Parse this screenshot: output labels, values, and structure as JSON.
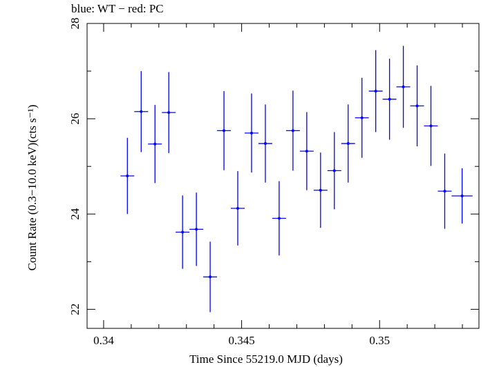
{
  "chart_data": {
    "type": "scatter",
    "title": "blue: WT − red: PC",
    "xlabel": "Time Since 55219.0 MJD (days)",
    "ylabel": "Count Rate (0.3−10.0 keV)(cts s⁻¹)",
    "xlim": [
      0.3394,
      0.3536
    ],
    "ylim": [
      21.6,
      28.0
    ],
    "x_ticks": [
      0.34,
      0.345,
      0.35
    ],
    "x_tick_labels": [
      "0.34",
      "0.345",
      "0.35"
    ],
    "y_ticks": [
      22,
      24,
      26,
      28
    ],
    "y_tick_labels": [
      "22",
      "24",
      "26",
      "28"
    ],
    "grid": false,
    "series": [
      {
        "color": "#0000ff",
        "points": [
          {
            "x": 0.34086,
            "xerr": 0.00025,
            "y": 24.8,
            "yerr": 0.8
          },
          {
            "x": 0.34136,
            "xerr": 0.00025,
            "y": 26.15,
            "yerr": 0.85
          },
          {
            "x": 0.34186,
            "xerr": 0.00025,
            "y": 25.47,
            "yerr": 0.82
          },
          {
            "x": 0.34236,
            "xerr": 0.00025,
            "y": 26.13,
            "yerr": 0.85
          },
          {
            "x": 0.34286,
            "xerr": 0.00025,
            "y": 23.62,
            "yerr": 0.77
          },
          {
            "x": 0.34336,
            "xerr": 0.00025,
            "y": 23.68,
            "yerr": 0.77
          },
          {
            "x": 0.34386,
            "xerr": 0.00025,
            "y": 22.68,
            "yerr": 0.74
          },
          {
            "x": 0.34436,
            "xerr": 0.00025,
            "y": 25.75,
            "yerr": 0.83
          },
          {
            "x": 0.34486,
            "xerr": 0.00025,
            "y": 24.12,
            "yerr": 0.78
          },
          {
            "x": 0.34536,
            "xerr": 0.00025,
            "y": 25.7,
            "yerr": 0.83
          },
          {
            "x": 0.34586,
            "xerr": 0.00025,
            "y": 25.48,
            "yerr": 0.82
          },
          {
            "x": 0.34636,
            "xerr": 0.00025,
            "y": 23.91,
            "yerr": 0.78
          },
          {
            "x": 0.34686,
            "xerr": 0.00025,
            "y": 25.75,
            "yerr": 0.84
          },
          {
            "x": 0.34736,
            "xerr": 0.00025,
            "y": 25.32,
            "yerr": 0.82
          },
          {
            "x": 0.34786,
            "xerr": 0.00025,
            "y": 24.5,
            "yerr": 0.79
          },
          {
            "x": 0.34836,
            "xerr": 0.00025,
            "y": 24.91,
            "yerr": 0.81
          },
          {
            "x": 0.34886,
            "xerr": 0.00025,
            "y": 25.48,
            "yerr": 0.82
          },
          {
            "x": 0.34936,
            "xerr": 0.00025,
            "y": 26.02,
            "yerr": 0.84
          },
          {
            "x": 0.34986,
            "xerr": 0.00025,
            "y": 26.58,
            "yerr": 0.86
          },
          {
            "x": 0.35036,
            "xerr": 0.00025,
            "y": 26.41,
            "yerr": 0.85
          },
          {
            "x": 0.35086,
            "xerr": 0.00025,
            "y": 26.67,
            "yerr": 0.86
          },
          {
            "x": 0.35136,
            "xerr": 0.00025,
            "y": 26.27,
            "yerr": 0.85
          },
          {
            "x": 0.35186,
            "xerr": 0.00025,
            "y": 25.85,
            "yerr": 0.84
          },
          {
            "x": 0.35236,
            "xerr": 0.00025,
            "y": 24.48,
            "yerr": 0.79
          },
          {
            "x": 0.35299,
            "xerr": 0.00038,
            "y": 24.38,
            "yerr": 0.58
          }
        ]
      }
    ]
  }
}
